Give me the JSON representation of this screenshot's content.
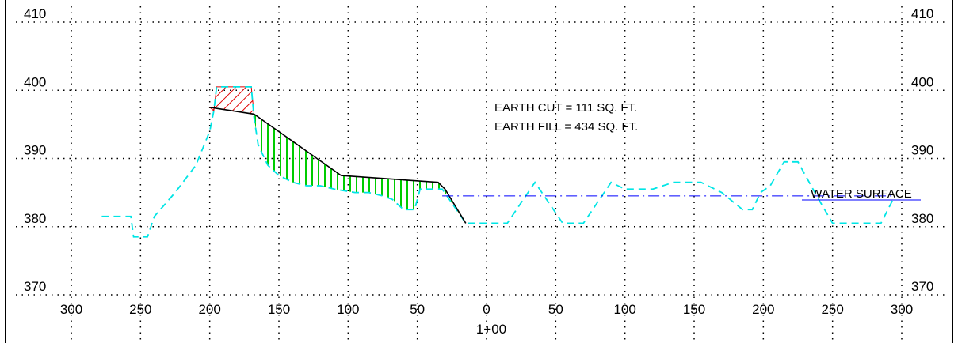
{
  "chart_data": {
    "type": "line",
    "title": "",
    "xlabel": "",
    "ylabel": "",
    "x_ticks": [
      "300",
      "250",
      "200",
      "150",
      "100",
      "50",
      "0",
      "50",
      "100",
      "150",
      "200",
      "250",
      "300"
    ],
    "x_tick_values": [
      -300,
      -250,
      -200,
      -150,
      -100,
      -50,
      0,
      50,
      100,
      150,
      200,
      250,
      300
    ],
    "y_ticks": [
      "410",
      "400",
      "390",
      "380",
      "370"
    ],
    "y_tick_values": [
      410,
      400,
      390,
      380,
      370
    ],
    "xlim": [
      -300,
      300
    ],
    "ylim": [
      370,
      410
    ],
    "grid": true,
    "station_label": "1+00",
    "colors": {
      "existing_ground": "#00e5e5",
      "proposed_section": "#000000",
      "cut": "#e00000",
      "fill": "#00cc00",
      "water": "#0000ff",
      "grid": "#000000"
    },
    "series": [
      {
        "key": "existing_ground",
        "style": "dashed",
        "points": [
          [
            -278,
            381.5
          ],
          [
            -257,
            381.5
          ],
          [
            -255,
            378.5
          ],
          [
            -245,
            378.5
          ],
          [
            -240,
            381.5
          ],
          [
            -225,
            385
          ],
          [
            -210,
            389
          ],
          [
            -200,
            394
          ],
          [
            -197,
            397
          ],
          [
            -195,
            400.5
          ],
          [
            -170,
            400.5
          ],
          [
            -168,
            396
          ],
          [
            -165,
            392
          ],
          [
            -158,
            389
          ],
          [
            -150,
            387.5
          ],
          [
            -140,
            386.5
          ],
          [
            -130,
            386
          ],
          [
            -120,
            386
          ],
          [
            -110,
            385.5
          ],
          [
            -95,
            385
          ],
          [
            -85,
            385
          ],
          [
            -75,
            384.5
          ],
          [
            -68,
            384
          ],
          [
            -60,
            382.5
          ],
          [
            -52,
            382.5
          ],
          [
            -48,
            385.5
          ],
          [
            -32,
            385.5
          ],
          [
            -15,
            380.5
          ],
          [
            15,
            380.5
          ],
          [
            35,
            386.5
          ],
          [
            55,
            380.5
          ],
          [
            70,
            380.5
          ],
          [
            90,
            386.5
          ],
          [
            100,
            385.5
          ],
          [
            120,
            385.5
          ],
          [
            135,
            386.5
          ],
          [
            155,
            386.5
          ],
          [
            170,
            385
          ],
          [
            185,
            382.5
          ],
          [
            192,
            382.5
          ],
          [
            198,
            385
          ],
          [
            205,
            386
          ],
          [
            215,
            389.5
          ],
          [
            225,
            389.5
          ],
          [
            240,
            384
          ],
          [
            250,
            380.5
          ],
          [
            285,
            380.5
          ],
          [
            295,
            384.5
          ]
        ]
      },
      {
        "key": "proposed_section",
        "style": "solid",
        "points": [
          [
            -200,
            397.5
          ],
          [
            -168,
            396.5
          ],
          [
            -105,
            387.5
          ],
          [
            -35,
            386.5
          ],
          [
            -30,
            385.5
          ],
          [
            -15,
            380.5
          ]
        ]
      },
      {
        "key": "water_surface",
        "style": "dash-dot",
        "points": [
          [
            -32,
            384.5
          ],
          [
            295,
            384.5
          ]
        ]
      }
    ],
    "annotations": [
      {
        "text": "EARTH CUT = 111 SQ. FT."
      },
      {
        "text": "EARTH FILL = 434 SQ. FT."
      },
      {
        "text": "WATER SURFACE"
      }
    ]
  }
}
